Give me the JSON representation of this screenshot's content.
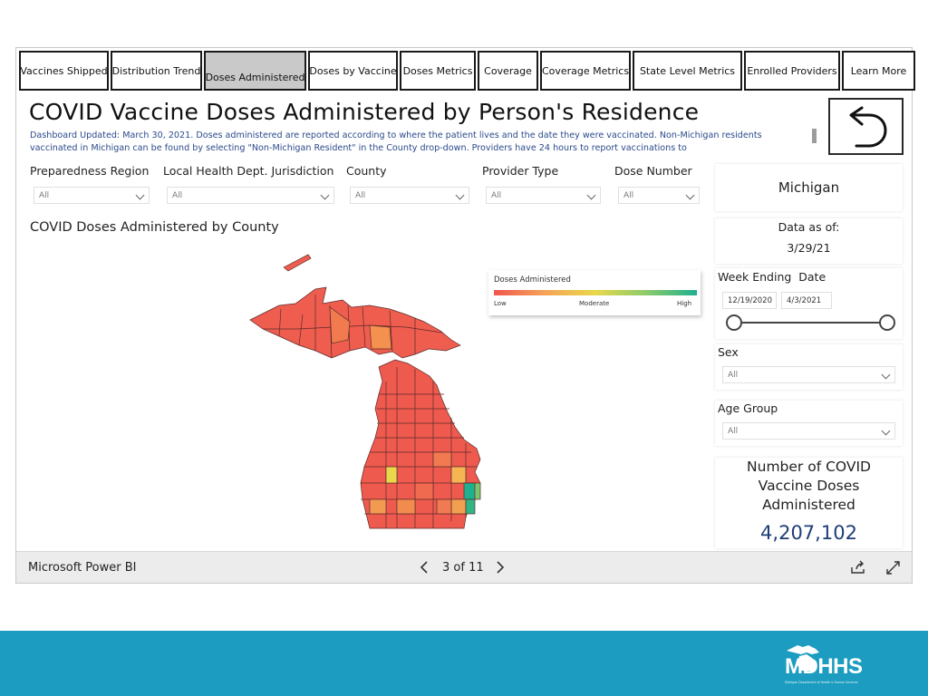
{
  "tabs": [
    {
      "label": "Vaccines Shipped",
      "active": false
    },
    {
      "label": "Distribution Trend",
      "active": false
    },
    {
      "label": "Doses Administered",
      "active": true
    },
    {
      "label": "Doses by Vaccine",
      "active": false
    },
    {
      "label": "Doses Metrics",
      "active": false
    },
    {
      "label": "Coverage",
      "active": false
    },
    {
      "label": "Coverage Metrics",
      "active": false
    },
    {
      "label": "State Level Metrics",
      "active": false
    },
    {
      "label": "Enrolled Providers",
      "active": false
    },
    {
      "label": "Learn More",
      "active": false
    }
  ],
  "header": {
    "title": "COVID Vaccine Doses Administered by Person's Residence",
    "description": "Dashboard Updated: March 30, 2021. Doses administered are reported according to where the patient lives and the date they were vaccinated. Non-Michigan residents vaccinated in Michigan can be found by selecting \"Non-Michigan Resident\" in the County drop-down. Providers have 24 hours to report vaccinations to"
  },
  "slicers": {
    "preparedness_region": {
      "label": "Preparedness Region",
      "value": "All"
    },
    "lhd": {
      "label": "Local Health Dept. Jurisdiction",
      "value": "All"
    },
    "county": {
      "label": "County",
      "value": "All"
    },
    "provider_type": {
      "label": "Provider Type",
      "value": "All"
    },
    "dose_number": {
      "label": "Dose Number",
      "value": "All"
    },
    "sex": {
      "label": "Sex",
      "value": "All"
    },
    "age_group": {
      "label": "Age Group",
      "value": "All"
    }
  },
  "state": "Michigan",
  "data_as_of": {
    "label": "Data as of:",
    "value": "3/29/21"
  },
  "week_ending": {
    "label": "Week Ending  Date",
    "start": "12/19/2020",
    "end": "4/3/2021"
  },
  "map": {
    "title": "COVID Doses Administered by County",
    "legend": {
      "title": "Doses Administered",
      "low": "Low",
      "moderate": "Moderate",
      "high": "High"
    }
  },
  "kpi": {
    "label": "Number of COVID Vaccine Doses Administered",
    "value": "4,207,102"
  },
  "footer": {
    "brand": "Microsoft Power BI",
    "page": "3 of 11"
  },
  "logo": {
    "text": "MDHHS",
    "tagline": "Michigan Department of Health & Human Services"
  },
  "colors": {
    "low": "#f0564e",
    "moderate": "#e8d84a",
    "high": "#1fb08f",
    "kpi": "#1f3d78",
    "brand_bar": "#1c9cc0"
  }
}
